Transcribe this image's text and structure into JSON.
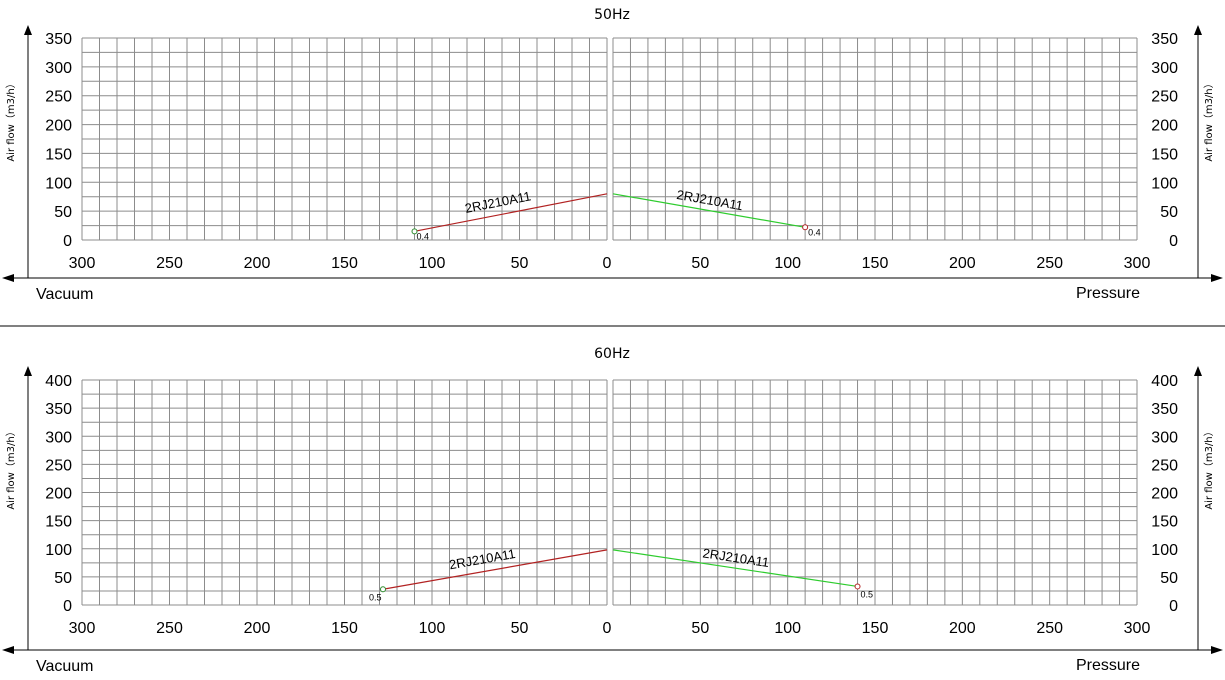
{
  "chart_data": [
    {
      "type": "line",
      "title": "50Hz",
      "ylabel": "Air flow（m3/h）",
      "ylim": [
        0,
        350
      ],
      "yticks": [
        0,
        50,
        100,
        150,
        200,
        250,
        300,
        350
      ],
      "x_ticks_left": [
        300,
        250,
        200,
        150,
        100,
        50,
        0
      ],
      "x_ticks_right": [
        0,
        50,
        100,
        150,
        200,
        250,
        300
      ],
      "left_label": "Vacuum",
      "right_label": "Pressure",
      "grid": true,
      "series": [
        {
          "panel": "vacuum",
          "name": "2RJ210A11",
          "color": "#b22222",
          "x": [
            110,
            0
          ],
          "y": [
            15,
            80
          ],
          "end_label": "0.4",
          "marker_color": "#2e8b2e"
        },
        {
          "panel": "pressure",
          "name": "2RJ210A11",
          "color": "#2ecc2e",
          "x": [
            0,
            110
          ],
          "y": [
            80,
            22
          ],
          "end_label": "0.4",
          "marker_color": "#b22222"
        }
      ]
    },
    {
      "type": "line",
      "title": "60Hz",
      "ylabel": "Air flow（m3/h）",
      "ylim": [
        0,
        400
      ],
      "yticks": [
        0,
        50,
        100,
        150,
        200,
        250,
        300,
        350,
        400
      ],
      "x_ticks_left": [
        300,
        250,
        200,
        150,
        100,
        50,
        0
      ],
      "x_ticks_right": [
        0,
        50,
        100,
        150,
        200,
        250,
        300
      ],
      "left_label": "Vacuum",
      "right_label": "Pressure",
      "grid": true,
      "series": [
        {
          "panel": "vacuum",
          "name": "2RJ210A11",
          "color": "#b22222",
          "x": [
            128,
            0
          ],
          "y": [
            28,
            98
          ],
          "end_label": "0.5",
          "marker_color": "#2e8b2e"
        },
        {
          "panel": "pressure",
          "name": "2RJ210A11",
          "color": "#2ecc2e",
          "x": [
            0,
            140
          ],
          "y": [
            98,
            33
          ],
          "end_label": "0.5",
          "marker_color": "#b22222"
        }
      ]
    }
  ]
}
